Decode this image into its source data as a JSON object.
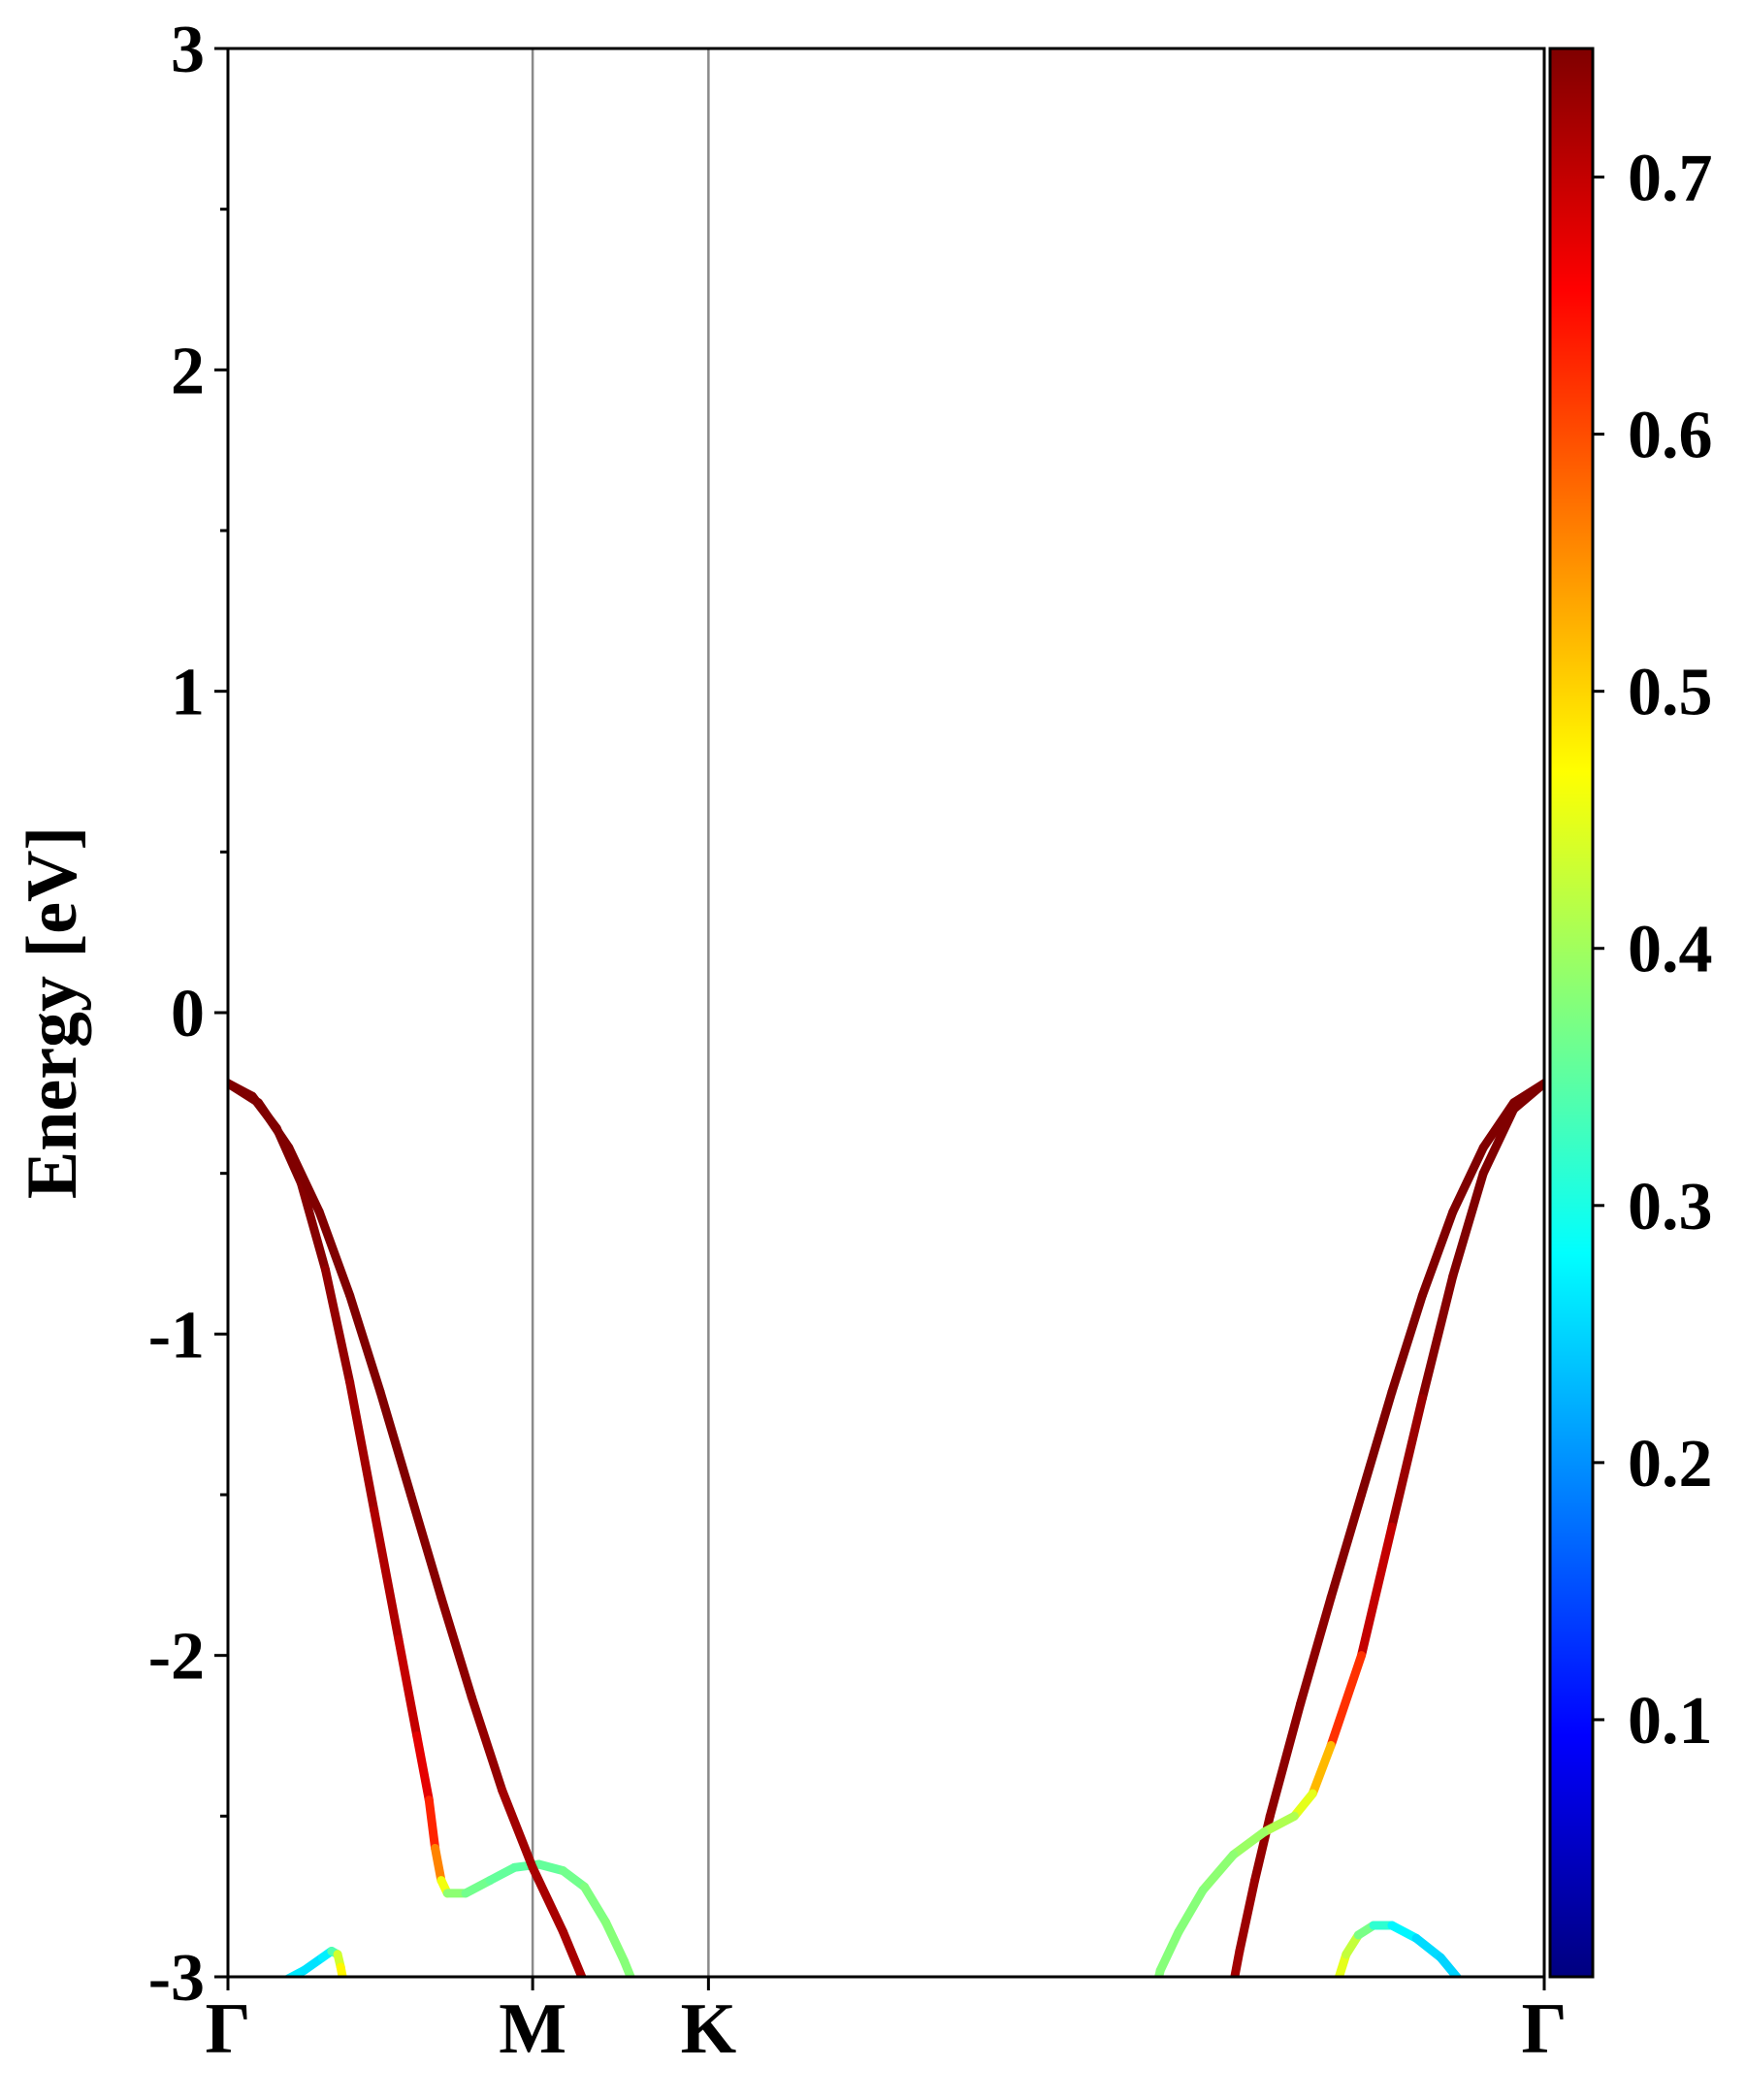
{
  "chart_data": {
    "type": "line",
    "title": "",
    "ylabel": "Energy [eV]",
    "xlabel": "",
    "ylim": [
      -3,
      3
    ],
    "yticks": [
      "3",
      "2",
      "1",
      "0",
      "-1",
      "-2",
      "-3"
    ],
    "kpath": {
      "labels": [
        "Γ",
        "M",
        "K",
        "Γ"
      ],
      "positions": [
        0,
        1,
        1.577,
        4.32
      ],
      "xlim": [
        0,
        4.32
      ]
    },
    "colorbar": {
      "colormap": "jet",
      "range": [
        0.0,
        0.75
      ],
      "ticks": [
        "0.1",
        "0.2",
        "0.3",
        "0.4",
        "0.5",
        "0.6",
        "0.7"
      ]
    },
    "series": [
      {
        "values": [
          [
            0,
            -0.22,
            0.75
          ],
          [
            0.08,
            -0.26,
            0.75
          ],
          [
            0.16,
            -0.36,
            0.75
          ],
          [
            0.24,
            -0.53,
            0.75
          ],
          [
            0.32,
            -0.8,
            0.74
          ],
          [
            0.4,
            -1.15,
            0.73
          ],
          [
            0.48,
            -1.55,
            0.72
          ],
          [
            0.56,
            -1.95,
            0.71
          ],
          [
            0.62,
            -2.25,
            0.69
          ],
          [
            0.66,
            -2.45,
            0.66
          ],
          [
            0.68,
            -2.6,
            0.6
          ],
          [
            0.7,
            -2.7,
            0.52
          ],
          [
            0.72,
            -2.74,
            0.4
          ],
          [
            0.78,
            -2.74,
            0.37
          ],
          [
            0.86,
            -2.7,
            0.36
          ],
          [
            0.94,
            -2.66,
            0.35
          ],
          [
            1.02,
            -2.65,
            0.35
          ],
          [
            1.1,
            -2.67,
            0.36
          ],
          [
            1.17,
            -2.72,
            0.37
          ],
          [
            1.24,
            -2.83,
            0.38
          ],
          [
            1.3,
            -2.95,
            0.38
          ],
          [
            1.33,
            -3.02,
            0.38
          ]
        ]
      },
      {
        "values": [
          [
            0,
            -0.22,
            0.75
          ],
          [
            0.1,
            -0.28,
            0.75
          ],
          [
            0.2,
            -0.42,
            0.75
          ],
          [
            0.3,
            -0.62,
            0.75
          ],
          [
            0.4,
            -0.88,
            0.75
          ],
          [
            0.5,
            -1.18,
            0.75
          ],
          [
            0.6,
            -1.5,
            0.75
          ],
          [
            0.7,
            -1.82,
            0.74
          ],
          [
            0.8,
            -2.13,
            0.74
          ],
          [
            0.9,
            -2.42,
            0.73
          ],
          [
            1.0,
            -2.66,
            0.72
          ],
          [
            1.1,
            -2.86,
            0.72
          ],
          [
            1.17,
            -3.02,
            0.72
          ]
        ]
      },
      {
        "values": [
          [
            0.17,
            -3.02,
            0.27
          ],
          [
            0.25,
            -2.98,
            0.26
          ],
          [
            0.31,
            -2.94,
            0.26
          ],
          [
            0.34,
            -2.92,
            0.28
          ],
          [
            0.36,
            -2.93,
            0.4
          ],
          [
            0.37,
            -2.97,
            0.47
          ],
          [
            0.38,
            -3.02,
            0.48
          ]
        ]
      },
      {
        "values": [
          [
            4.32,
            -0.22,
            0.75
          ],
          [
            4.22,
            -0.28,
            0.75
          ],
          [
            4.12,
            -0.42,
            0.75
          ],
          [
            4.02,
            -0.62,
            0.75
          ],
          [
            3.92,
            -0.88,
            0.75
          ],
          [
            3.82,
            -1.18,
            0.75
          ],
          [
            3.72,
            -1.5,
            0.75
          ],
          [
            3.62,
            -1.82,
            0.74
          ],
          [
            3.52,
            -2.15,
            0.74
          ],
          [
            3.42,
            -2.5,
            0.74
          ],
          [
            3.37,
            -2.7,
            0.73
          ],
          [
            3.32,
            -2.92,
            0.73
          ],
          [
            3.3,
            -3.02,
            0.72
          ]
        ]
      },
      {
        "values": [
          [
            4.32,
            -0.22,
            0.75
          ],
          [
            4.22,
            -0.3,
            0.75
          ],
          [
            4.12,
            -0.5,
            0.75
          ],
          [
            4.02,
            -0.82,
            0.75
          ],
          [
            3.92,
            -1.2,
            0.74
          ],
          [
            3.82,
            -1.6,
            0.72
          ],
          [
            3.72,
            -2.0,
            0.68
          ],
          [
            3.62,
            -2.28,
            0.56
          ],
          [
            3.56,
            -2.43,
            0.48
          ],
          [
            3.5,
            -2.5,
            0.42
          ],
          [
            3.4,
            -2.55,
            0.4
          ],
          [
            3.3,
            -2.62,
            0.39
          ],
          [
            3.2,
            -2.73,
            0.38
          ],
          [
            3.12,
            -2.86,
            0.38
          ],
          [
            3.06,
            -2.98,
            0.38
          ],
          [
            3.05,
            -3.02,
            0.38
          ]
        ]
      },
      {
        "values": [
          [
            3.64,
            -3.02,
            0.45
          ],
          [
            3.67,
            -2.93,
            0.45
          ],
          [
            3.71,
            -2.87,
            0.4
          ],
          [
            3.76,
            -2.84,
            0.34
          ],
          [
            3.82,
            -2.84,
            0.29
          ],
          [
            3.9,
            -2.88,
            0.26
          ],
          [
            3.98,
            -2.94,
            0.25
          ],
          [
            4.05,
            -3.02,
            0.25
          ]
        ]
      }
    ]
  }
}
